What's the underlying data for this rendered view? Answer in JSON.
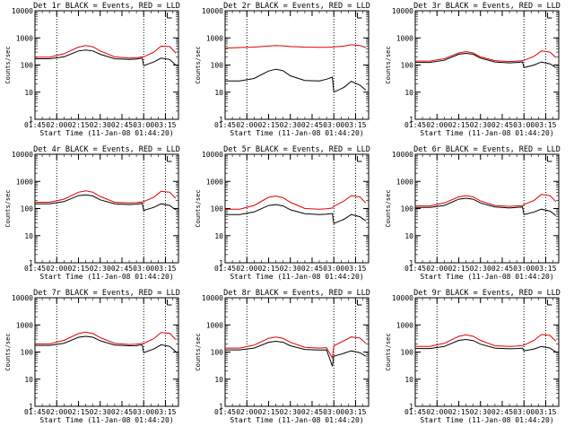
{
  "figure": {
    "colors": {
      "events": "#000000",
      "lld": "#e00000",
      "axis": "#000000",
      "background": "#ffffff"
    }
  },
  "chart_data": [
    {
      "type": "line",
      "title": "Det 1r BLACK = Events, RED = LLD",
      "xlabel": "Start Time (11-Jan-08 01:44:20)",
      "ylabel": "Counts/sec",
      "xlim": [
        "01:45",
        "03:24"
      ],
      "ylim": [
        1,
        10000
      ],
      "yscale": "log",
      "x_ticks": [
        "01:45",
        "02:00",
        "02:15",
        "02:30",
        "02:45",
        "03:00",
        "03:15"
      ],
      "y_ticks": [
        "1",
        "10",
        "100",
        "1000",
        "10000"
      ],
      "vlines": [
        "02:00",
        "03:00",
        "03:15"
      ],
      "annotation": "L",
      "x": [
        "01:45",
        "01:55",
        "02:05",
        "02:15",
        "02:20",
        "02:25",
        "02:30",
        "02:40",
        "02:50",
        "02:55",
        "02:59",
        "03:00",
        "03:07",
        "03:12",
        "03:18",
        "03:22"
      ],
      "series": [
        {
          "name": "Events",
          "values": [
            170,
            170,
            200,
            330,
            360,
            330,
            250,
            170,
            160,
            165,
            180,
            95,
            130,
            180,
            160,
            100
          ]
        },
        {
          "name": "LLD",
          "values": [
            195,
            195,
            260,
            460,
            520,
            470,
            330,
            200,
            180,
            185,
            200,
            200,
            300,
            500,
            480,
            280
          ]
        }
      ]
    },
    {
      "type": "line",
      "title": "Det 2r BLACK = Events, RED = LLD",
      "xlabel": "Start Time (11-Jan-08 01:44:20)",
      "ylabel": "Counts/sec",
      "xlim": [
        "01:45",
        "03:24"
      ],
      "ylim": [
        1,
        10000
      ],
      "yscale": "log",
      "x_ticks": [
        "01:45",
        "02:00",
        "02:15",
        "02:30",
        "02:45",
        "03:00",
        "03:15"
      ],
      "y_ticks": [
        "1",
        "10",
        "100",
        "1000",
        "10000"
      ],
      "vlines": [
        "02:00",
        "03:00",
        "03:15"
      ],
      "annotation": "L",
      "x": [
        "01:45",
        "01:55",
        "02:05",
        "02:15",
        "02:20",
        "02:25",
        "02:30",
        "02:40",
        "02:50",
        "02:55",
        "02:59",
        "03:00",
        "03:07",
        "03:12",
        "03:18",
        "03:22"
      ],
      "series": [
        {
          "name": "Events",
          "values": [
            26,
            26,
            32,
            60,
            70,
            62,
            40,
            27,
            26,
            30,
            36,
            10,
            15,
            25,
            18,
            12
          ]
        },
        {
          "name": "LLD",
          "values": [
            420,
            440,
            460,
            500,
            520,
            510,
            480,
            460,
            450,
            450,
            460,
            470,
            500,
            560,
            520,
            440
          ]
        }
      ]
    },
    {
      "type": "line",
      "title": "Det 3r BLACK = Events, RED = LLD",
      "xlabel": "Start Time (11-Jan-08 01:44:20)",
      "ylabel": "Counts/sec",
      "xlim": [
        "01:45",
        "03:24"
      ],
      "ylim": [
        1,
        10000
      ],
      "yscale": "log",
      "x_ticks": [
        "01:45",
        "02:00",
        "02:15",
        "02:30",
        "02:45",
        "03:00",
        "03:15"
      ],
      "y_ticks": [
        "1",
        "10",
        "100",
        "1000",
        "10000"
      ],
      "vlines": [
        "03:00",
        "03:15"
      ],
      "annotation": "L",
      "x": [
        "01:45",
        "01:55",
        "02:05",
        "02:15",
        "02:20",
        "02:25",
        "02:30",
        "02:40",
        "02:50",
        "02:55",
        "02:59",
        "03:00",
        "03:07",
        "03:12",
        "03:18",
        "03:22"
      ],
      "series": [
        {
          "name": "Events",
          "values": [
            125,
            125,
            150,
            250,
            270,
            250,
            180,
            130,
            120,
            125,
            130,
            80,
            100,
            130,
            110,
            80
          ]
        },
        {
          "name": "LLD",
          "values": [
            140,
            140,
            170,
            280,
            310,
            280,
            200,
            145,
            135,
            140,
            145,
            150,
            210,
            330,
            300,
            190
          ]
        }
      ]
    },
    {
      "type": "line",
      "title": "Det 4r BLACK = Events, RED = LLD",
      "xlabel": "Start Time (11-Jan-08 01:44:20)",
      "ylabel": "Counts/sec",
      "xlim": [
        "01:45",
        "03:24"
      ],
      "ylim": [
        1,
        10000
      ],
      "yscale": "log",
      "x_ticks": [
        "01:45",
        "02:00",
        "02:15",
        "02:30",
        "02:45",
        "03:00",
        "03:15"
      ],
      "y_ticks": [
        "1",
        "10",
        "100",
        "1000",
        "10000"
      ],
      "vlines": [
        "02:00",
        "03:00",
        "03:15"
      ],
      "annotation": "L",
      "x": [
        "01:45",
        "01:55",
        "02:05",
        "02:15",
        "02:20",
        "02:25",
        "02:30",
        "02:40",
        "02:50",
        "02:55",
        "02:59",
        "03:00",
        "03:07",
        "03:12",
        "03:18",
        "03:22"
      ],
      "series": [
        {
          "name": "Events",
          "values": [
            150,
            150,
            180,
            300,
            320,
            290,
            210,
            150,
            140,
            145,
            155,
            85,
            110,
            150,
            130,
            90
          ]
        },
        {
          "name": "LLD",
          "values": [
            170,
            170,
            220,
            400,
            450,
            400,
            280,
            170,
            160,
            165,
            175,
            180,
            260,
            430,
            400,
            240
          ]
        }
      ]
    },
    {
      "type": "line",
      "title": "Det 5r BLACK = Events, RED = LLD",
      "xlabel": "Start Time (11-Jan-08 01:44:20)",
      "ylabel": "Counts/sec",
      "xlim": [
        "01:45",
        "03:24"
      ],
      "ylim": [
        1,
        10000
      ],
      "yscale": "log",
      "x_ticks": [
        "01:45",
        "02:00",
        "02:15",
        "02:30",
        "02:45",
        "03:00",
        "03:15"
      ],
      "y_ticks": [
        "1",
        "10",
        "100",
        "1000",
        "10000"
      ],
      "vlines": [
        "02:00",
        "03:00",
        "03:15"
      ],
      "annotation": "L",
      "x": [
        "01:45",
        "01:55",
        "02:05",
        "02:15",
        "02:20",
        "02:25",
        "02:30",
        "02:40",
        "02:50",
        "02:55",
        "02:59",
        "03:00",
        "03:07",
        "03:12",
        "03:18",
        "03:22"
      ],
      "series": [
        {
          "name": "Events",
          "values": [
            60,
            60,
            75,
            130,
            140,
            125,
            90,
            65,
            60,
            62,
            66,
            28,
            40,
            60,
            50,
            35
          ]
        },
        {
          "name": "LLD",
          "values": [
            95,
            95,
            130,
            260,
            290,
            250,
            170,
            100,
            95,
            98,
            105,
            120,
            190,
            300,
            270,
            160
          ]
        }
      ]
    },
    {
      "type": "line",
      "title": "Det 6r BLACK = Events, RED = LLD",
      "xlabel": "Start Time (11-Jan-08 01:44:20)",
      "ylabel": "Counts/sec",
      "xlim": [
        "01:45",
        "03:24"
      ],
      "ylim": [
        1,
        10000
      ],
      "yscale": "log",
      "x_ticks": [
        "01:45",
        "02:00",
        "02:15",
        "02:30",
        "02:45",
        "03:00",
        "03:15"
      ],
      "y_ticks": [
        "1",
        "10",
        "100",
        "1000",
        "10000"
      ],
      "vlines": [
        "02:00",
        "03:00",
        "03:15"
      ],
      "annotation": "L",
      "x": [
        "01:45",
        "01:55",
        "02:05",
        "02:15",
        "02:20",
        "02:25",
        "02:30",
        "02:40",
        "02:50",
        "02:55",
        "02:59",
        "03:00",
        "03:07",
        "03:12",
        "03:18",
        "03:22"
      ],
      "series": [
        {
          "name": "Events",
          "values": [
            110,
            110,
            130,
            220,
            240,
            220,
            160,
            115,
            105,
            110,
            115,
            60,
            75,
            95,
            80,
            55
          ]
        },
        {
          "name": "LLD",
          "values": [
            125,
            125,
            160,
            270,
            300,
            270,
            190,
            130,
            120,
            125,
            130,
            140,
            200,
            330,
            300,
            180
          ]
        }
      ]
    },
    {
      "type": "line",
      "title": "Det 7r BLACK = Events, RED = LLD",
      "xlabel": "Start Time (11-Jan-08 01:44:20)",
      "ylabel": "Counts/sec",
      "xlim": [
        "01:45",
        "03:24"
      ],
      "ylim": [
        1,
        10000
      ],
      "yscale": "log",
      "x_ticks": [
        "01:45",
        "02:00",
        "02:15",
        "02:30",
        "02:45",
        "03:00",
        "03:15"
      ],
      "y_ticks": [
        "1",
        "10",
        "100",
        "1000",
        "10000"
      ],
      "vlines": [
        "02:00",
        "03:00",
        "03:15"
      ],
      "annotation": "L",
      "x": [
        "01:45",
        "01:55",
        "02:05",
        "02:15",
        "02:20",
        "02:25",
        "02:30",
        "02:40",
        "02:50",
        "02:55",
        "02:59",
        "03:00",
        "03:07",
        "03:12",
        "03:18",
        "03:22"
      ],
      "series": [
        {
          "name": "Events",
          "values": [
            175,
            175,
            210,
            350,
            380,
            350,
            260,
            180,
            170,
            172,
            185,
            95,
            130,
            185,
            160,
            105
          ]
        },
        {
          "name": "LLD",
          "values": [
            200,
            200,
            270,
            480,
            540,
            480,
            340,
            210,
            190,
            195,
            210,
            210,
            310,
            520,
            490,
            290
          ]
        }
      ]
    },
    {
      "type": "line",
      "title": "Det 8r BLACK = Events, RED = LLD",
      "xlabel": "Start Time (11-Jan-08 01:44:20)",
      "ylabel": "Counts/sec",
      "xlim": [
        "01:45",
        "03:24"
      ],
      "ylim": [
        1,
        10000
      ],
      "yscale": "log",
      "x_ticks": [
        "01:45",
        "02:00",
        "02:15",
        "02:30",
        "02:45",
        "03:00",
        "03:15"
      ],
      "y_ticks": [
        "1",
        "10",
        "100",
        "1000",
        "10000"
      ],
      "vlines": [
        "02:00",
        "03:00",
        "03:15"
      ],
      "annotation": "L",
      "x": [
        "01:45",
        "01:55",
        "02:05",
        "02:15",
        "02:20",
        "02:25",
        "02:30",
        "02:40",
        "02:50",
        "02:55",
        "02:59",
        "03:00",
        "03:07",
        "03:12",
        "03:18",
        "03:22"
      ],
      "series": [
        {
          "name": "Events",
          "values": [
            120,
            120,
            140,
            230,
            250,
            230,
            170,
            125,
            118,
            120,
            30,
            70,
            90,
            110,
            95,
            70
          ]
        },
        {
          "name": "LLD",
          "values": [
            140,
            140,
            180,
            320,
            360,
            320,
            230,
            150,
            140,
            145,
            60,
            170,
            260,
            360,
            330,
            210
          ]
        }
      ]
    },
    {
      "type": "line",
      "title": "Det 9r BLACK = Events, RED = LLD",
      "xlabel": "Start Time (11-Jan-08 01:44:20)",
      "ylabel": "Counts/sec",
      "xlim": [
        "01:45",
        "03:24"
      ],
      "ylim": [
        1,
        10000
      ],
      "yscale": "log",
      "x_ticks": [
        "01:45",
        "02:00",
        "02:15",
        "02:30",
        "02:45",
        "03:00",
        "03:15"
      ],
      "y_ticks": [
        "1",
        "10",
        "100",
        "1000",
        "10000"
      ],
      "vlines": [
        "02:00",
        "03:00",
        "03:15"
      ],
      "annotation": "L",
      "x": [
        "01:45",
        "01:55",
        "02:05",
        "02:15",
        "02:20",
        "02:25",
        "02:30",
        "02:40",
        "02:50",
        "02:55",
        "02:59",
        "03:00",
        "03:07",
        "03:12",
        "03:18",
        "03:22"
      ],
      "series": [
        {
          "name": "Events",
          "values": [
            135,
            135,
            160,
            270,
            290,
            265,
            195,
            140,
            132,
            135,
            140,
            110,
            130,
            160,
            140,
            100
          ]
        },
        {
          "name": "LLD",
          "values": [
            160,
            160,
            210,
            380,
            430,
            380,
            270,
            170,
            160,
            165,
            175,
            180,
            270,
            440,
            410,
            250
          ]
        }
      ]
    }
  ]
}
